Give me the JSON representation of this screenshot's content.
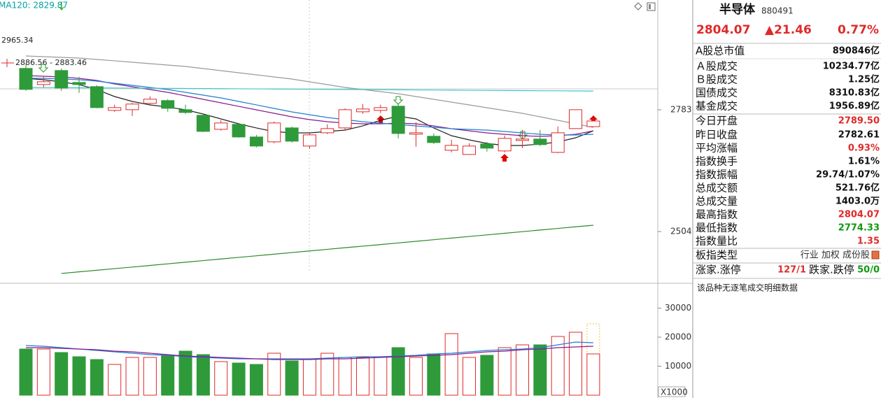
{
  "chart_data": [
    {
      "type": "candlestick",
      "header_label": "MA120: 2829.87",
      "annotations": [
        "2965.34",
        "2886.56 - 2883.46"
      ],
      "up_color": "#e02a2a",
      "down_color": "#2f9a3a",
      "open": [
        2877.9,
        2841.0,
        2873.1,
        2845.8,
        2836.2,
        2781.7,
        2783.3,
        2797.8,
        2804.2,
        2783.3,
        2770.5,
        2738.4,
        2749.7,
        2720.8,
        2709.6,
        2741.6,
        2700.0,
        2730.4,
        2741.6,
        2778.5,
        2781.7,
        2791.3,
        2727.2,
        2722.4,
        2690.4,
        2680.7,
        2704.8,
        2688.8,
        2712.8,
        2716.0,
        2685.5,
        2740.0,
        2744.5
      ],
      "close": [
        2829.8,
        2847.4,
        2833.0,
        2841.0,
        2788.1,
        2788.1,
        2796.2,
        2807.4,
        2786.5,
        2776.9,
        2733.6,
        2752.9,
        2720.8,
        2700.0,
        2752.9,
        2711.2,
        2725.6,
        2740.0,
        2783.3,
        2784.9,
        2788.1,
        2728.8,
        2730.4,
        2708.0,
        2701.6,
        2700.0,
        2695.2,
        2717.6,
        2716.0,
        2703.2,
        2730.4,
        2783.3,
        2757.4
      ],
      "high": [
        2887.5,
        2858.7,
        2877.9,
        2858.7,
        2839.4,
        2794.6,
        2799.4,
        2813.8,
        2807.4,
        2794.6,
        2773.7,
        2759.3,
        2752.9,
        2725.6,
        2756.1,
        2744.9,
        2732.0,
        2749.7,
        2786.5,
        2796.2,
        2794.6,
        2797.8,
        2754.5,
        2728.8,
        2714.4,
        2706.4,
        2709.6,
        2724.0,
        2736.8,
        2736.8,
        2744.9,
        2783.3,
        2765.4
      ],
      "low": [
        2826.6,
        2834.6,
        2826.6,
        2821.8,
        2786.5,
        2778.5,
        2768.9,
        2794.6,
        2778.5,
        2773.7,
        2732.0,
        2735.2,
        2719.2,
        2696.8,
        2706.4,
        2708.0,
        2693.6,
        2727.2,
        2736.8,
        2773.7,
        2775.3,
        2717.6,
        2698.4,
        2704.8,
        2685.5,
        2680.7,
        2687.2,
        2685.5,
        2695.2,
        2700.0,
        2683.9,
        2740.0,
        2744.5
      ],
      "series": [
        {
          "color": "#222222",
          "values": [
            2855.2,
            2852.0,
            2847.2,
            2840.7,
            2829.5,
            2813.5,
            2802.3,
            2794.3,
            2789.4,
            2783.0,
            2773.4,
            2762.2,
            2751.0,
            2741.4,
            2733.3,
            2730.1,
            2730.1,
            2733.3,
            2736.5,
            2746.2,
            2759.0,
            2768.6,
            2762.2,
            2741.4,
            2723.7,
            2714.1,
            2706.1,
            2701.3,
            2701.3,
            2704.5,
            2709.3,
            2718.9,
            2734.9
          ]
        },
        {
          "color": "#8a1a8a",
          "values": [
            2861.6,
            2860.0,
            2858.4,
            2855.2,
            2850.4,
            2842.3,
            2835.9,
            2829.5,
            2823.1,
            2815.1,
            2807.1,
            2799.1,
            2791.0,
            2783.0,
            2775.0,
            2767.0,
            2760.6,
            2755.8,
            2752.6,
            2751.0,
            2751.0,
            2752.6,
            2751.0,
            2746.2,
            2739.7,
            2734.9,
            2730.1,
            2726.9,
            2723.7,
            2722.1,
            2723.7,
            2726.9,
            2734.9
          ]
        },
        {
          "color": "#1f7fd0",
          "values": [
            2855.2,
            2855.2,
            2853.6,
            2852.0,
            2848.8,
            2844.0,
            2839.1,
            2834.3,
            2829.5,
            2823.1,
            2816.7,
            2810.3,
            2802.3,
            2794.3,
            2786.2,
            2778.2,
            2771.8,
            2765.4,
            2760.6,
            2755.8,
            2752.6,
            2749.4,
            2746.2,
            2743.0,
            2739.7,
            2738.1,
            2736.5,
            2733.3,
            2730.1,
            2726.9,
            2725.3,
            2725.3,
            2726.9
          ]
        },
        {
          "color": "#9a9a9a",
          "values": [
            2906.5,
            2904.9,
            2903.3,
            2901.7,
            2898.5,
            2895.3,
            2892.0,
            2888.8,
            2885.6,
            2882.4,
            2877.6,
            2872.8,
            2868.0,
            2863.2,
            2858.4,
            2853.6,
            2847.2,
            2840.7,
            2834.3,
            2829.5,
            2824.7,
            2819.9,
            2813.5,
            2807.1,
            2800.7,
            2794.3,
            2787.8,
            2781.4,
            2775.0,
            2767.0,
            2759.0,
            2751.0,
            2742.9
          ]
        },
        {
          "color": "#3cc8c8",
          "values": [
            2834.3,
            2834.0,
            2833.8,
            2833.5,
            2833.3,
            2833.0,
            2832.8,
            2832.5,
            2832.2,
            2832.0,
            2831.7,
            2831.5,
            2831.2,
            2831.0,
            2830.7,
            2830.4,
            2830.2,
            2829.9,
            2829.7,
            2829.4,
            2829.1,
            2828.9,
            2828.6,
            2828.4,
            2828.1,
            2827.8,
            2827.6,
            2827.3,
            2827.1,
            2826.8,
            2826.6,
            2826.3,
            2826.1
          ]
        },
        {
          "color": "#2a8a2a",
          "values": [
            null,
            null,
            2408.0,
            2411.7,
            2415.4,
            2419.1,
            2422.7,
            2426.4,
            2430.1,
            2433.8,
            2437.5,
            2441.2,
            2444.9,
            2448.5,
            2452.2,
            2455.9,
            2459.6,
            2463.3,
            2467.0,
            2470.6,
            2474.3,
            2478.0,
            2481.7,
            2485.4,
            2489.1,
            2492.8,
            2496.4,
            2500.1,
            2503.8,
            2507.5,
            2511.2,
            2514.9,
            2518.5
          ]
        }
      ],
      "ylim": [
        2385.5,
        3034.7
      ],
      "yticks": [
        2783,
        2504
      ]
    },
    {
      "type": "bar",
      "unit_label": "X1000",
      "values": [
        15900,
        15900,
        14700,
        13250,
        12290,
        10600,
        13010,
        13010,
        13740,
        15180,
        13980,
        11570,
        11080,
        10600,
        14460,
        11810,
        12530,
        14460,
        13010,
        13010,
        13250,
        16390,
        13010,
        14220,
        21210,
        13010,
        13740,
        16390,
        17350,
        17350,
        20240,
        21690,
        14220
      ],
      "projected": 24580,
      "projected_color": "#e8c840",
      "series": [
        {
          "color": "#1f7fd0",
          "values": [
            17111,
            16870,
            16388,
            15906,
            15424,
            14942,
            14460,
            13978,
            13737,
            13255,
            13014,
            12773,
            12532,
            12532,
            12532,
            12532,
            12532,
            12773,
            13014,
            13255,
            13255,
            13496,
            13737,
            14219,
            14460,
            14942,
            15424,
            15665,
            15906,
            16388,
            17352,
            18316,
            18075
          ]
        },
        {
          "color": "#8a1a8a",
          "values": [
            16388,
            16388,
            16147,
            15906,
            15665,
            15183,
            14942,
            14460,
            13978,
            13496,
            13255,
            13014,
            12773,
            12532,
            12291,
            12291,
            12291,
            12532,
            12532,
            12773,
            13014,
            13255,
            13496,
            13737,
            13978,
            14460,
            14942,
            15183,
            15665,
            15906,
            16388,
            16629,
            16870
          ]
        }
      ],
      "ylim": [
        0,
        38550
      ],
      "yticks": [
        10000,
        20000,
        30000
      ]
    }
  ],
  "quote": {
    "name": "半导体",
    "code": "880491",
    "price": "2804.07",
    "change": "▲21.46",
    "pct": "0.77%"
  },
  "stats": [
    {
      "label": "A股总市值",
      "value": "890846亿"
    },
    {
      "label": "Ａ股成交",
      "value": "10234.77亿"
    },
    {
      "label": "Ｂ股成交",
      "value": "1.25亿"
    },
    {
      "label": "国债成交",
      "value": "8310.83亿"
    },
    {
      "label": "基金成交",
      "value": "1956.89亿"
    },
    {
      "label": "今日开盘",
      "value": "2789.50",
      "color": "#e02a2a"
    },
    {
      "label": "昨日收盘",
      "value": "2782.61"
    },
    {
      "label": "平均涨幅",
      "value": "0.93%",
      "color": "#e02a2a"
    },
    {
      "label": "指数换手",
      "value": "1.61%"
    },
    {
      "label": "指数振幅",
      "value": "29.74/1.07%"
    },
    {
      "label": "总成交额",
      "value": "521.76亿"
    },
    {
      "label": "总成交量",
      "value": "1403.0万"
    },
    {
      "label": "最高指数",
      "value": "2804.07",
      "color": "#e02a2a"
    },
    {
      "label": "最低指数",
      "value": "2774.33",
      "color": "#119911"
    },
    {
      "label": "指数量比",
      "value": "1.35",
      "color": "#e02a2a"
    }
  ],
  "type_row": {
    "label": "板指类型",
    "value": "行业 加权 成份股"
  },
  "limit_row": {
    "up_label": "涨家.涨停",
    "up_value": "127/1",
    "down_label": "跌家.跌停",
    "down_value": "50/0"
  },
  "note": "该品种无逐笔成交明细数据"
}
